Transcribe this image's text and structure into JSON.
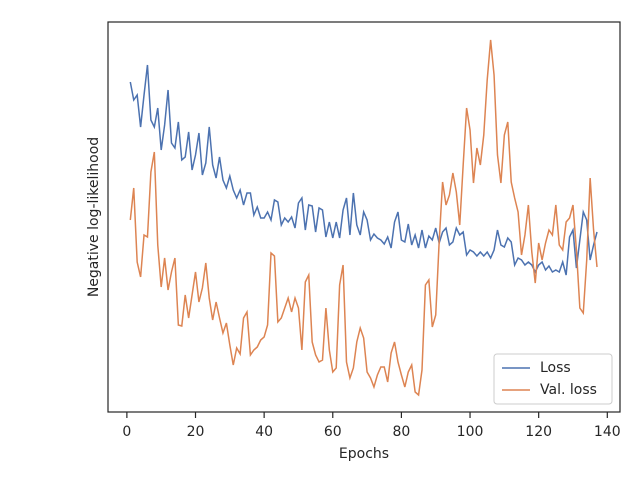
{
  "chart_data": {
    "type": "line",
    "xlabel": "Epochs",
    "ylabel": "Negative log-likelihood",
    "x": [
      1,
      2,
      3,
      4,
      5,
      6,
      7,
      8,
      9,
      10,
      11,
      12,
      13,
      14,
      15,
      16,
      17,
      18,
      19,
      20,
      21,
      22,
      23,
      24,
      25,
      26,
      27,
      28,
      29,
      30,
      31,
      32,
      33,
      34,
      35,
      36,
      37,
      38,
      39,
      40,
      41,
      42,
      43,
      44,
      45,
      46,
      47,
      48,
      49,
      50,
      51,
      52,
      53,
      54,
      55,
      56,
      57,
      58,
      59,
      60,
      61,
      62,
      63,
      64,
      65,
      66,
      67,
      68,
      69,
      70,
      71,
      72,
      73,
      74,
      75,
      76,
      77,
      78,
      79,
      80,
      81,
      82,
      83,
      84,
      85,
      86,
      87,
      88,
      89,
      90,
      91,
      92,
      93,
      94,
      95,
      96,
      97,
      98,
      99,
      100,
      101,
      102,
      103,
      104,
      105,
      106,
      107,
      108,
      109,
      110,
      111,
      112,
      113,
      114,
      115,
      116,
      117,
      118,
      119,
      120,
      121,
      122,
      123,
      124,
      125,
      126,
      127,
      128,
      129,
      130,
      131,
      132,
      133,
      134,
      135,
      136,
      137
    ],
    "series": [
      {
        "name": "Loss",
        "color": "#4c72b0",
        "values": [
          330,
          312,
          317,
          285,
          317,
          347,
          292,
          285,
          304,
          262,
          287,
          322,
          269,
          264,
          290,
          252,
          255,
          280,
          242,
          257,
          279,
          237,
          249,
          285,
          247,
          234,
          255,
          232,
          224,
          236,
          222,
          214,
          222,
          207,
          219,
          219,
          197,
          205,
          194,
          194,
          200,
          192,
          212,
          210,
          187,
          194,
          190,
          195,
          184,
          209,
          214,
          182,
          207,
          206,
          180,
          204,
          202,
          175,
          190,
          174,
          190,
          174,
          202,
          214,
          177,
          219,
          187,
          177,
          200,
          192,
          172,
          178,
          174,
          172,
          168,
          175,
          164,
          190,
          200,
          172,
          170,
          188,
          167,
          177,
          164,
          182,
          164,
          176,
          172,
          184,
          169,
          180,
          184,
          167,
          170,
          184,
          177,
          180,
          157,
          162,
          160,
          156,
          160,
          156,
          160,
          154,
          162,
          182,
          167,
          165,
          174,
          170,
          147,
          154,
          152,
          147,
          150,
          147,
          140,
          147,
          150,
          142,
          146,
          140,
          142,
          140,
          150,
          137,
          175,
          182,
          144,
          172,
          200,
          192,
          152,
          167,
          180
        ]
      },
      {
        "name": "Val. loss",
        "color": "#dd8452",
        "values": [
          192,
          224,
          150,
          135,
          177,
          175,
          240,
          260,
          167,
          125,
          154,
          122,
          140,
          154,
          87,
          86,
          117,
          94,
          117,
          140,
          110,
          124,
          149,
          114,
          92,
          110,
          94,
          79,
          89,
          67,
          47,
          64,
          58,
          94,
          100,
          57,
          62,
          65,
          72,
          75,
          87,
          159,
          156,
          90,
          94,
          104,
          114,
          100,
          114,
          104,
          62,
          130,
          137,
          70,
          57,
          50,
          52,
          104,
          62,
          40,
          44,
          127,
          147,
          50,
          34,
          44,
          70,
          84,
          74,
          40,
          34,
          25,
          37,
          45,
          45,
          30,
          59,
          70,
          50,
          37,
          25,
          40,
          47,
          20,
          17,
          42,
          127,
          132,
          85,
          97,
          170,
          230,
          207,
          217,
          239,
          220,
          187,
          247,
          304,
          282,
          229,
          264,
          247,
          277,
          332,
          372,
          337,
          257,
          229,
          277,
          290,
          230,
          214,
          200,
          157,
          177,
          207,
          160,
          129,
          169,
          152,
          169,
          182,
          177,
          207,
          167,
          162,
          190,
          194,
          207,
          162,
          104,
          99,
          152,
          234,
          182,
          145
        ]
      }
    ],
    "xlim": [
      -5.5,
      143.7
    ],
    "xticks": [
      0,
      20,
      40,
      60,
      80,
      100,
      120,
      140
    ],
    "ylim": [
      0,
      390
    ],
    "legend": "lower right"
  }
}
